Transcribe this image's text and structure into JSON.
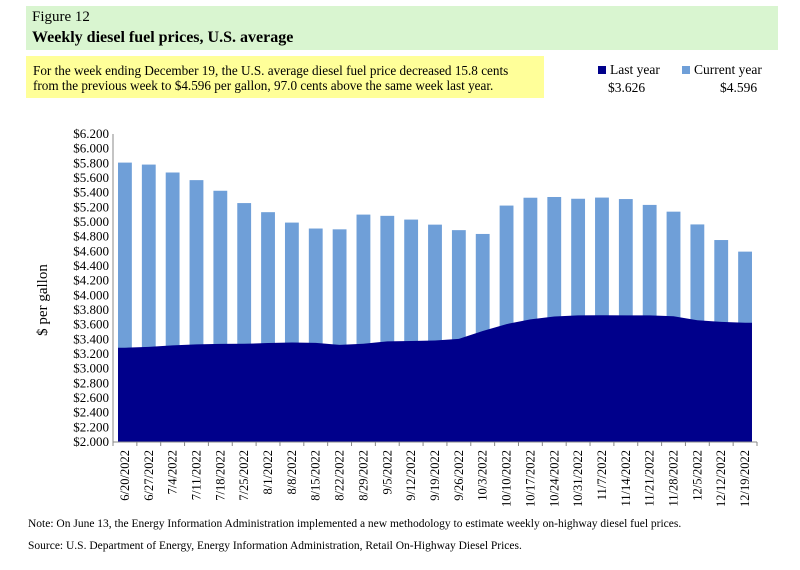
{
  "header": {
    "figure_label": "Figure 12",
    "title": "Weekly diesel fuel prices, U.S. average"
  },
  "summary_text": {
    "line1": "For the week ending  December 19, the U.S. average diesel fuel price decreased 15.8 cents",
    "line2": "from the previous week to $4.596 per gallon,  97.0 cents above the same week last year."
  },
  "legend": {
    "last_year_label": "Last year",
    "current_year_label": "Current year",
    "last_year_value": "$3.626",
    "current_year_value": "$4.596"
  },
  "colors": {
    "current_year": "#6f9fd8",
    "last_year": "#00008b",
    "header_bg": "#d9f5d0",
    "summary_bg": "#ffff99"
  },
  "chart_data": {
    "type": "bar",
    "ylabel": "$ per gallon",
    "ylim": [
      2.0,
      6.2
    ],
    "ytick_step": 0.2,
    "ytick_labels": [
      "$2.000",
      "$2.200",
      "$2.400",
      "$2.600",
      "$2.800",
      "$3.000",
      "$3.200",
      "$3.400",
      "$3.600",
      "$3.800",
      "$4.000",
      "$4.200",
      "$4.400",
      "$4.600",
      "$4.800",
      "$5.000",
      "$5.200",
      "$5.400",
      "$5.600",
      "$5.800",
      "$6.000",
      "$6.200"
    ],
    "categories": [
      "6/20/2022",
      "6/27/2022",
      "7/4/2022",
      "7/11/2022",
      "7/18/2022",
      "7/25/2022",
      "8/1/2022",
      "8/8/2022",
      "8/15/2022",
      "8/22/2022",
      "8/29/2022",
      "9/5/2022",
      "9/12/2022",
      "9/19/2022",
      "9/26/2022",
      "10/3/2022",
      "10/10/2022",
      "10/17/2022",
      "10/24/2022",
      "10/31/2022",
      "11/7/2022",
      "11/14/2022",
      "11/21/2022",
      "11/28/2022",
      "12/5/2022",
      "12/12/2022",
      "12/19/2022"
    ],
    "series": [
      {
        "name": "Current year",
        "type": "bar",
        "values": [
          5.81,
          5.783,
          5.675,
          5.571,
          5.426,
          5.258,
          5.134,
          4.992,
          4.911,
          4.9,
          5.101,
          5.084,
          5.033,
          4.964,
          4.889,
          4.837,
          5.224,
          5.331,
          5.341,
          5.317,
          5.333,
          5.313,
          5.233,
          5.141,
          4.967,
          4.754,
          4.596
        ]
      },
      {
        "name": "Last year",
        "type": "area",
        "values": [
          3.286,
          3.298,
          3.317,
          3.331,
          3.338,
          3.339,
          3.35,
          3.356,
          3.351,
          3.324,
          3.339,
          3.373,
          3.377,
          3.384,
          3.406,
          3.513,
          3.608,
          3.673,
          3.712,
          3.726,
          3.728,
          3.727,
          3.726,
          3.715,
          3.66,
          3.638,
          3.626
        ]
      }
    ],
    "grid": false,
    "legend_position": "top-right"
  },
  "footer": {
    "note": "Note: On June 13, the Energy Information Administration implemented a new methodology to estimate weekly on-highway diesel fuel prices.",
    "source": "Source:  U.S. Department of Energy, Energy Information Administration, Retail On-Highway Diesel Prices."
  }
}
